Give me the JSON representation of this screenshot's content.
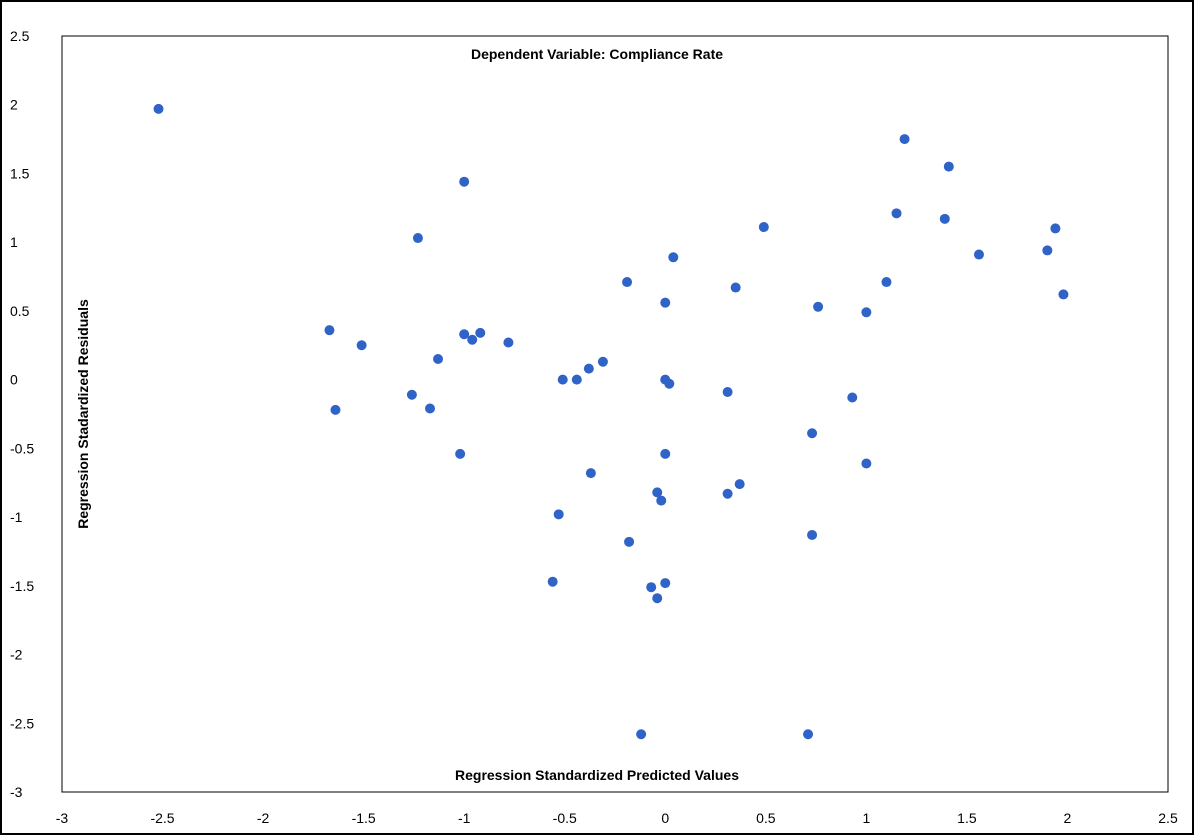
{
  "chart_data": {
    "type": "scatter",
    "title": "Dependent Variable: Compliance Rate",
    "xlabel": "Regression Standardized Predicted Values",
    "ylabel": "Regression Stadardized Residuals",
    "xlim": [
      -3,
      2.5
    ],
    "ylim": [
      -3,
      2.5
    ],
    "xticks": [
      "-3",
      "-2.5",
      "-2",
      "-1.5",
      "-1",
      "-0.5",
      "0",
      "0.5",
      "1",
      "1.5",
      "2",
      "2.5"
    ],
    "yticks": [
      "2.5",
      "2",
      "1.5",
      "1",
      "0.5",
      "0",
      "-0.5",
      "-1",
      "-1.5",
      "-2",
      "-2.5",
      "-3"
    ],
    "grid": false,
    "legend": "none",
    "marker_color": "#2f63c8",
    "points": [
      {
        "x": -2.52,
        "y": 1.97
      },
      {
        "x": -1.67,
        "y": 0.36
      },
      {
        "x": -1.64,
        "y": -0.22
      },
      {
        "x": -1.51,
        "y": 0.25
      },
      {
        "x": -1.26,
        "y": -0.11
      },
      {
        "x": -1.23,
        "y": 1.03
      },
      {
        "x": -1.17,
        "y": -0.21
      },
      {
        "x": -1.13,
        "y": 0.15
      },
      {
        "x": -1.02,
        "y": -0.54
      },
      {
        "x": -1.0,
        "y": 1.44
      },
      {
        "x": -1.0,
        "y": 0.33
      },
      {
        "x": -0.96,
        "y": 0.29
      },
      {
        "x": -0.92,
        "y": 0.34
      },
      {
        "x": -0.78,
        "y": 0.27
      },
      {
        "x": -0.56,
        "y": -1.47
      },
      {
        "x": -0.53,
        "y": -0.98
      },
      {
        "x": -0.51,
        "y": 0.0
      },
      {
        "x": -0.44,
        "y": 0.0
      },
      {
        "x": -0.38,
        "y": 0.08
      },
      {
        "x": -0.37,
        "y": -0.68
      },
      {
        "x": -0.31,
        "y": 0.13
      },
      {
        "x": -0.19,
        "y": 0.71
      },
      {
        "x": -0.18,
        "y": -1.18
      },
      {
        "x": -0.12,
        "y": -2.58
      },
      {
        "x": -0.07,
        "y": -1.51
      },
      {
        "x": -0.04,
        "y": -0.82
      },
      {
        "x": -0.04,
        "y": -1.59
      },
      {
        "x": -0.02,
        "y": -0.88
      },
      {
        "x": 0.0,
        "y": 0.0
      },
      {
        "x": 0.0,
        "y": 0.56
      },
      {
        "x": 0.0,
        "y": -0.54
      },
      {
        "x": 0.0,
        "y": -1.48
      },
      {
        "x": 0.02,
        "y": -0.03
      },
      {
        "x": 0.04,
        "y": 0.89
      },
      {
        "x": 0.31,
        "y": -0.83
      },
      {
        "x": 0.31,
        "y": -0.09
      },
      {
        "x": 0.35,
        "y": 0.67
      },
      {
        "x": 0.37,
        "y": -0.76
      },
      {
        "x": 0.49,
        "y": 1.11
      },
      {
        "x": 0.71,
        "y": -2.58
      },
      {
        "x": 0.73,
        "y": -1.13
      },
      {
        "x": 0.73,
        "y": -0.39
      },
      {
        "x": 0.76,
        "y": 0.53
      },
      {
        "x": 0.93,
        "y": -0.13
      },
      {
        "x": 1.0,
        "y": 0.49
      },
      {
        "x": 1.0,
        "y": -0.61
      },
      {
        "x": 1.1,
        "y": 0.71
      },
      {
        "x": 1.15,
        "y": 1.21
      },
      {
        "x": 1.19,
        "y": 1.75
      },
      {
        "x": 1.39,
        "y": 1.17
      },
      {
        "x": 1.41,
        "y": 1.55
      },
      {
        "x": 1.56,
        "y": 0.91
      },
      {
        "x": 1.9,
        "y": 0.94
      },
      {
        "x": 1.94,
        "y": 1.1
      },
      {
        "x": 1.98,
        "y": 0.62
      }
    ]
  }
}
